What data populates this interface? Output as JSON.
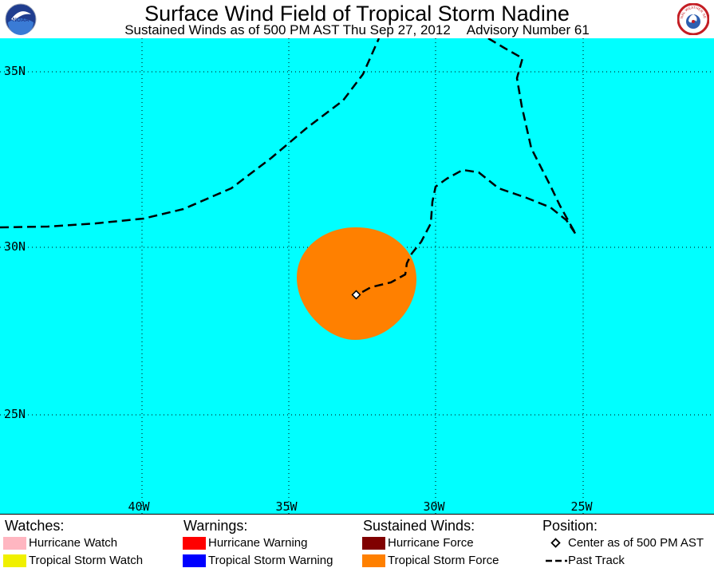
{
  "header": {
    "title": "Surface Wind Field of Tropical Storm Nadine",
    "subtitle_left": "Sustained Winds as of 500 PM AST Thu Sep 27, 2012",
    "subtitle_right": "Advisory Number 61",
    "left_logo": "NOAA",
    "right_logo": "NATIONAL WEATHER SERVICE"
  },
  "map": {
    "ocean_color": "#00ffff",
    "lat_labels": [
      "35N",
      "30N",
      "25N"
    ],
    "lon_labels": [
      "40W",
      "35W",
      "30W",
      "25W"
    ],
    "wind_field_color": "#ff8000",
    "track_color": "#000000"
  },
  "legend": {
    "watches": {
      "heading": "Watches:",
      "items": [
        {
          "label": "Hurricane Watch",
          "color": "#ffb6c1"
        },
        {
          "label": "Tropical Storm Watch",
          "color": "#f0f000"
        }
      ]
    },
    "warnings": {
      "heading": "Warnings:",
      "items": [
        {
          "label": "Hurricane Warning",
          "color": "#ff0000"
        },
        {
          "label": "Tropical Storm Warning",
          "color": "#0000ff"
        }
      ]
    },
    "winds": {
      "heading": "Sustained Winds:",
      "items": [
        {
          "label": "Hurricane Force",
          "color": "#800000"
        },
        {
          "label": "Tropical Storm Force",
          "color": "#ff8000"
        }
      ]
    },
    "position": {
      "heading": "Position:",
      "center_label": "Center as of 500 PM AST",
      "track_label": "Past Track"
    }
  }
}
